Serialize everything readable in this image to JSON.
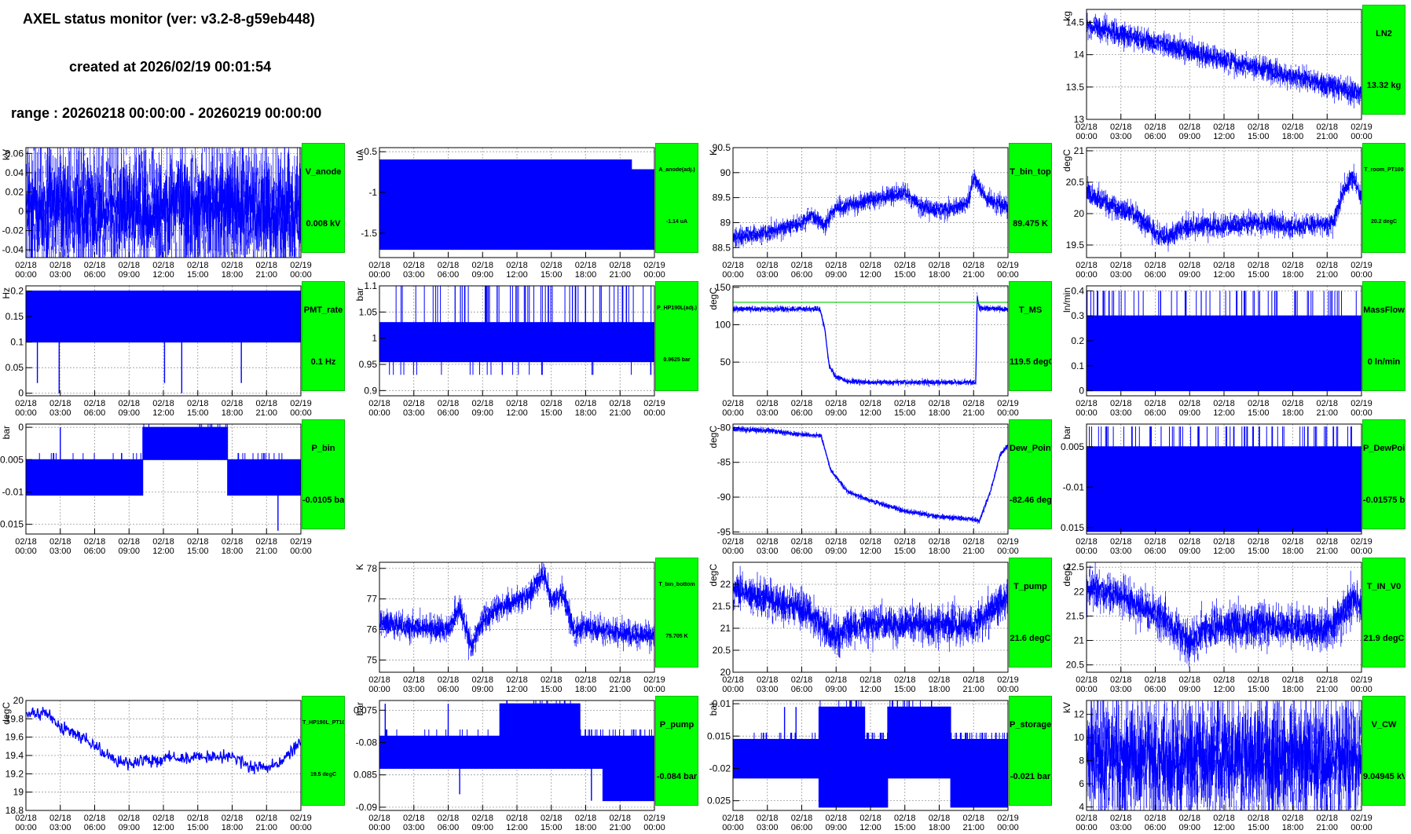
{
  "header": {
    "title": "AXEL status monitor (ver: v3.2-8-g59eb448)",
    "created": "created at 2026/02/19 00:01:54",
    "range": "range : 20260218 00:00:00 - 20260219 00:00:00"
  },
  "colors": {
    "data": "#0000ff",
    "status_ok": "#00ff00",
    "threshold": "#00cc00"
  },
  "x_ticks": [
    {
      "d": "02/18",
      "t": "00:00"
    },
    {
      "d": "02/18",
      "t": "03:00"
    },
    {
      "d": "02/18",
      "t": "06:00"
    },
    {
      "d": "02/18",
      "t": "09:00"
    },
    {
      "d": "02/18",
      "t": "12:00"
    },
    {
      "d": "02/18",
      "t": "15:00"
    },
    {
      "d": "02/18",
      "t": "18:00"
    },
    {
      "d": "02/18",
      "t": "21:00"
    },
    {
      "d": "02/19",
      "t": "00:00"
    }
  ],
  "chart_data": [
    {
      "id": "LN2",
      "type": "line",
      "ylabel": "kg",
      "yticks": [
        "13",
        "13.5",
        "14",
        "14.5"
      ],
      "ylim": [
        13,
        14.7
      ],
      "name": "LN2",
      "value": "13.32 kg",
      "series": {
        "kind": "trend",
        "points": [
          [
            0,
            14.45
          ],
          [
            24,
            13.4
          ]
        ],
        "noise": 0.12
      }
    },
    {
      "id": "V_anode",
      "type": "line",
      "ylabel": "kV",
      "yticks": [
        "-0.04",
        "-0.02",
        "0",
        "0.02",
        "0.04",
        "0.06"
      ],
      "ylim": [
        -0.048,
        0.066
      ],
      "name": "V_anode",
      "value": "0.008 kV",
      "series": {
        "kind": "noise",
        "points": [
          [
            0,
            0.004
          ],
          [
            24,
            0.004
          ]
        ],
        "noise": 0.045
      }
    },
    {
      "id": "A_anode",
      "type": "line",
      "ylabel": "uA",
      "yticks": [
        "-1.5",
        "-1",
        "-0.5"
      ],
      "ylim": [
        -1.8,
        -0.45
      ],
      "name": "A_anode(adj.)",
      "value": "-1.14 uA",
      "series": {
        "kind": "band",
        "lo": -1.7,
        "hi": -0.6,
        "hi2": -0.72,
        "switch": 22
      }
    },
    {
      "id": "T_bin_top",
      "type": "line",
      "ylabel": "K",
      "yticks": [
        "88.5",
        "89",
        "89.5",
        "90",
        "90.5"
      ],
      "ylim": [
        88.3,
        90.5
      ],
      "name": "T_bin_top",
      "value": "89.475 K",
      "series": {
        "kind": "walk",
        "points": [
          [
            0,
            88.7
          ],
          [
            3,
            88.8
          ],
          [
            5.5,
            88.95
          ],
          [
            7,
            89.15
          ],
          [
            8,
            88.95
          ],
          [
            9,
            89.3
          ],
          [
            12,
            89.45
          ],
          [
            15,
            89.6
          ],
          [
            16.5,
            89.3
          ],
          [
            19,
            89.25
          ],
          [
            20.5,
            89.4
          ],
          [
            21,
            89.9
          ],
          [
            22,
            89.5
          ],
          [
            24,
            89.3
          ]
        ],
        "noise": 0.12
      }
    },
    {
      "id": "T_room_PT100",
      "type": "line",
      "ylabel": "degC",
      "yticks": [
        "19.5",
        "20",
        "20.5",
        "21"
      ],
      "ylim": [
        19.3,
        21.05
      ],
      "name": "T_room_PT100",
      "value": "20.2 degC",
      "series": {
        "kind": "walk",
        "points": [
          [
            0,
            20.35
          ],
          [
            2,
            20.15
          ],
          [
            4,
            20.0
          ],
          [
            5,
            19.85
          ],
          [
            7,
            19.6
          ],
          [
            8.5,
            19.8
          ],
          [
            12,
            19.8
          ],
          [
            15,
            19.85
          ],
          [
            18,
            19.8
          ],
          [
            21.5,
            19.85
          ],
          [
            22.5,
            20.4
          ],
          [
            23.2,
            20.6
          ],
          [
            24,
            20.25
          ]
        ],
        "noise": 0.12
      }
    },
    {
      "id": "PMT_rate",
      "type": "line",
      "ylabel": "Hz",
      "yticks": [
        "0",
        "0.05",
        "0.1",
        "0.15",
        "0.2"
      ],
      "ylim": [
        -0.005,
        0.21
      ],
      "name": "PMT_rate",
      "value": "0.1 Hz",
      "series": {
        "kind": "band",
        "lo": 0.1,
        "hi": 0.2,
        "spikes": [
          [
            2.9,
            0
          ],
          [
            12.1,
            0.02
          ],
          [
            13.6,
            0
          ],
          [
            18.8,
            0.02
          ],
          [
            1,
            0.02
          ]
        ]
      }
    },
    {
      "id": "P_HP190L",
      "type": "line",
      "ylabel": "bar",
      "yticks": [
        "0.9",
        "0.95",
        "1",
        "1.05",
        "1.1"
      ],
      "ylim": [
        0.89,
        1.1
      ],
      "name": "P_HP190L(adj.)",
      "value": "0.9625 bar",
      "series": {
        "kind": "band",
        "lo": 0.955,
        "hi": 1.03,
        "spikes_up": 1.1,
        "spikes_dn": 0.93
      }
    },
    {
      "id": "T_MS",
      "type": "line",
      "ylabel": "degC",
      "yticks": [
        "50",
        "100",
        "150"
      ],
      "ylim": [
        5,
        152
      ],
      "name": "T_MS",
      "value": "119.5 degC",
      "threshold": 130,
      "series": {
        "kind": "walk",
        "points": [
          [
            0,
            121
          ],
          [
            7.6,
            121
          ],
          [
            8,
            95
          ],
          [
            8.4,
            45
          ],
          [
            9,
            30
          ],
          [
            10,
            25
          ],
          [
            12,
            23
          ],
          [
            21.2,
            23
          ],
          [
            21.3,
            140
          ],
          [
            21.5,
            122
          ],
          [
            24,
            121
          ]
        ],
        "noise": 2.5
      }
    },
    {
      "id": "MassFlow",
      "type": "line",
      "ylabel": "ln/min",
      "yticks": [
        "0",
        "0.1",
        "0.2",
        "0.3",
        "0.4"
      ],
      "ylim": [
        -0.02,
        0.42
      ],
      "name": "MassFlow",
      "value": "0 ln/min",
      "series": {
        "kind": "band",
        "lo": 0.0,
        "hi": 0.3,
        "spikes_up": 0.4
      }
    },
    {
      "id": "P_bin",
      "type": "line",
      "ylabel": "bar",
      "yticks": [
        "-0.015",
        "-0.01",
        "-0.005",
        "0"
      ],
      "ylim": [
        -0.0165,
        0.0005
      ],
      "name": "P_bin",
      "value": "-0.0105 bar",
      "series": {
        "kind": "segments",
        "segs": [
          [
            0,
            10.2,
            -0.0105,
            -0.005
          ],
          [
            10.2,
            17.6,
            -0.005,
            0
          ],
          [
            17.6,
            24,
            -0.0105,
            -0.005
          ]
        ],
        "spikes": [
          [
            3,
            0
          ],
          [
            22,
            -0.016
          ]
        ]
      }
    },
    {
      "id": "Dew_Point",
      "type": "line",
      "ylabel": "degC",
      "yticks": [
        "-95",
        "-90",
        "-85",
        "-80"
      ],
      "ylim": [
        -95.3,
        -79.5
      ],
      "name": "Dew_Point",
      "value": "-82.46 degC",
      "series": {
        "kind": "walk",
        "points": [
          [
            0,
            -80.2
          ],
          [
            3,
            -80.4
          ],
          [
            6,
            -81
          ],
          [
            7.7,
            -81.2
          ],
          [
            8.5,
            -86
          ],
          [
            10,
            -89.2
          ],
          [
            12,
            -90.5
          ],
          [
            15,
            -92
          ],
          [
            18,
            -92.8
          ],
          [
            21,
            -93.2
          ],
          [
            21.5,
            -93.5
          ],
          [
            22.5,
            -89
          ],
          [
            23.3,
            -84
          ],
          [
            24,
            -82.5
          ]
        ],
        "noise": 0.25
      }
    },
    {
      "id": "P_DewPoint",
      "type": "line",
      "ylabel": "bar",
      "yticks": [
        "-0.015",
        "-0.01",
        "-0.005"
      ],
      "ylim": [
        -0.0158,
        -0.0022
      ],
      "name": "P_DewPoint",
      "value": "-0.01575 bar",
      "series": {
        "kind": "band",
        "lo": -0.0155,
        "hi": -0.005,
        "spikes_up": -0.0025
      }
    },
    {
      "id": "T_bin_bottom",
      "type": "line",
      "ylabel": "K",
      "yticks": [
        "75",
        "76",
        "77",
        "78"
      ],
      "ylim": [
        74.6,
        78.2
      ],
      "name": "T_bin_bottom",
      "value": "75.705 K",
      "series": {
        "kind": "walk",
        "points": [
          [
            0,
            76.2
          ],
          [
            3,
            76.1
          ],
          [
            6,
            76.0
          ],
          [
            7,
            76.7
          ],
          [
            8,
            75.4
          ],
          [
            9,
            76.3
          ],
          [
            11,
            76.8
          ],
          [
            13,
            77.1
          ],
          [
            14.3,
            77.8
          ],
          [
            15,
            76.9
          ],
          [
            16,
            77.2
          ],
          [
            17,
            75.9
          ],
          [
            18,
            76.1
          ],
          [
            21,
            75.9
          ],
          [
            24,
            75.8
          ]
        ],
        "noise": 0.28
      }
    },
    {
      "id": "T_pump",
      "type": "line",
      "ylabel": "degC",
      "yticks": [
        "20",
        "20.5",
        "21",
        "21.5",
        "22"
      ],
      "ylim": [
        20,
        22.5
      ],
      "name": "T_pump",
      "value": "21.6 degC",
      "series": {
        "kind": "walk",
        "points": [
          [
            0,
            21.9
          ],
          [
            3,
            21.65
          ],
          [
            6,
            21.45
          ],
          [
            8,
            21.05
          ],
          [
            9,
            20.75
          ],
          [
            10,
            21.0
          ],
          [
            12,
            21.1
          ],
          [
            18,
            21.1
          ],
          [
            21,
            21.05
          ],
          [
            22.5,
            21.4
          ],
          [
            24,
            21.7
          ]
        ],
        "noise": 0.28
      }
    },
    {
      "id": "T_IN_V0",
      "type": "line",
      "ylabel": "degC",
      "yticks": [
        "20.5",
        "21",
        "21.5",
        "22",
        "22.5"
      ],
      "ylim": [
        20.35,
        22.6
      ],
      "name": "T_IN_V0",
      "value": "21.9 degC",
      "series": {
        "kind": "walk",
        "points": [
          [
            0,
            22.1
          ],
          [
            3,
            21.9
          ],
          [
            6,
            21.55
          ],
          [
            8,
            21.2
          ],
          [
            9,
            20.9
          ],
          [
            10,
            21.15
          ],
          [
            12,
            21.3
          ],
          [
            18,
            21.3
          ],
          [
            21,
            21.2
          ],
          [
            22.5,
            21.6
          ],
          [
            23.3,
            21.9
          ],
          [
            24,
            21.7
          ]
        ],
        "noise": 0.27
      }
    },
    {
      "id": "T_HP190L_PT100",
      "type": "line",
      "ylabel": "degC",
      "yticks": [
        "18.8",
        "19",
        "19.2",
        "19.4",
        "19.6",
        "19.8",
        "20"
      ],
      "ylim": [
        18.8,
        20
      ],
      "name": "T_HP190L_PT100",
      "value": "19.5 degC",
      "series": {
        "kind": "walk",
        "points": [
          [
            0,
            19.85
          ],
          [
            2.2,
            19.85
          ],
          [
            3,
            19.7
          ],
          [
            5,
            19.6
          ],
          [
            7,
            19.4
          ],
          [
            9,
            19.3
          ],
          [
            10,
            19.35
          ],
          [
            18,
            19.4
          ],
          [
            20,
            19.25
          ],
          [
            22,
            19.3
          ],
          [
            23.5,
            19.5
          ],
          [
            24,
            19.55
          ]
        ],
        "noise": 0.07
      }
    },
    {
      "id": "P_pump",
      "type": "line",
      "ylabel": "bar",
      "yticks": [
        "-0.09",
        "-0.085",
        "-0.08",
        "-0.075"
      ],
      "ylim": [
        -0.0905,
        -0.0735
      ],
      "name": "P_pump",
      "value": "-0.084 bar",
      "series": {
        "kind": "segments",
        "segs": [
          [
            0,
            10.5,
            -0.084,
            -0.079
          ],
          [
            10.5,
            17.5,
            -0.084,
            -0.074
          ],
          [
            17.5,
            19.5,
            -0.084,
            -0.079
          ],
          [
            19.5,
            24,
            -0.089,
            -0.079
          ]
        ],
        "spikes": [
          [
            0.5,
            -0.074
          ],
          [
            6,
            -0.074
          ],
          [
            7,
            -0.088
          ],
          [
            18.5,
            -0.089
          ]
        ]
      }
    },
    {
      "id": "P_storage",
      "type": "line",
      "ylabel": "bar",
      "yticks": [
        "-0.025",
        "-0.02",
        "-0.015",
        "-0.01"
      ],
      "ylim": [
        -0.0265,
        -0.0095
      ],
      "name": "P_storage",
      "value": "-0.021 bar",
      "series": {
        "kind": "segments",
        "segs": [
          [
            0,
            7.5,
            -0.0215,
            -0.0155
          ],
          [
            7.5,
            11.5,
            -0.026,
            -0.0105
          ],
          [
            11.5,
            13.5,
            -0.026,
            -0.0155
          ],
          [
            13.5,
            19,
            -0.0215,
            -0.0105
          ],
          [
            19,
            21,
            -0.026,
            -0.0155
          ],
          [
            21,
            24,
            -0.026,
            -0.0155
          ]
        ],
        "spikes": [
          [
            4.5,
            -0.0105
          ],
          [
            5.5,
            -0.0105
          ],
          [
            16.5,
            -0.0105
          ]
        ]
      }
    },
    {
      "id": "V_CW",
      "type": "line",
      "ylabel": "kV",
      "yticks": [
        "4",
        "6",
        "8",
        "10",
        "12"
      ],
      "ylim": [
        3.7,
        13.2
      ],
      "name": "V_CW",
      "value": "9.04945 kV",
      "series": {
        "kind": "noise",
        "points": [
          [
            0,
            8.2
          ],
          [
            24,
            8.2
          ]
        ],
        "noise": 3.6
      }
    }
  ]
}
